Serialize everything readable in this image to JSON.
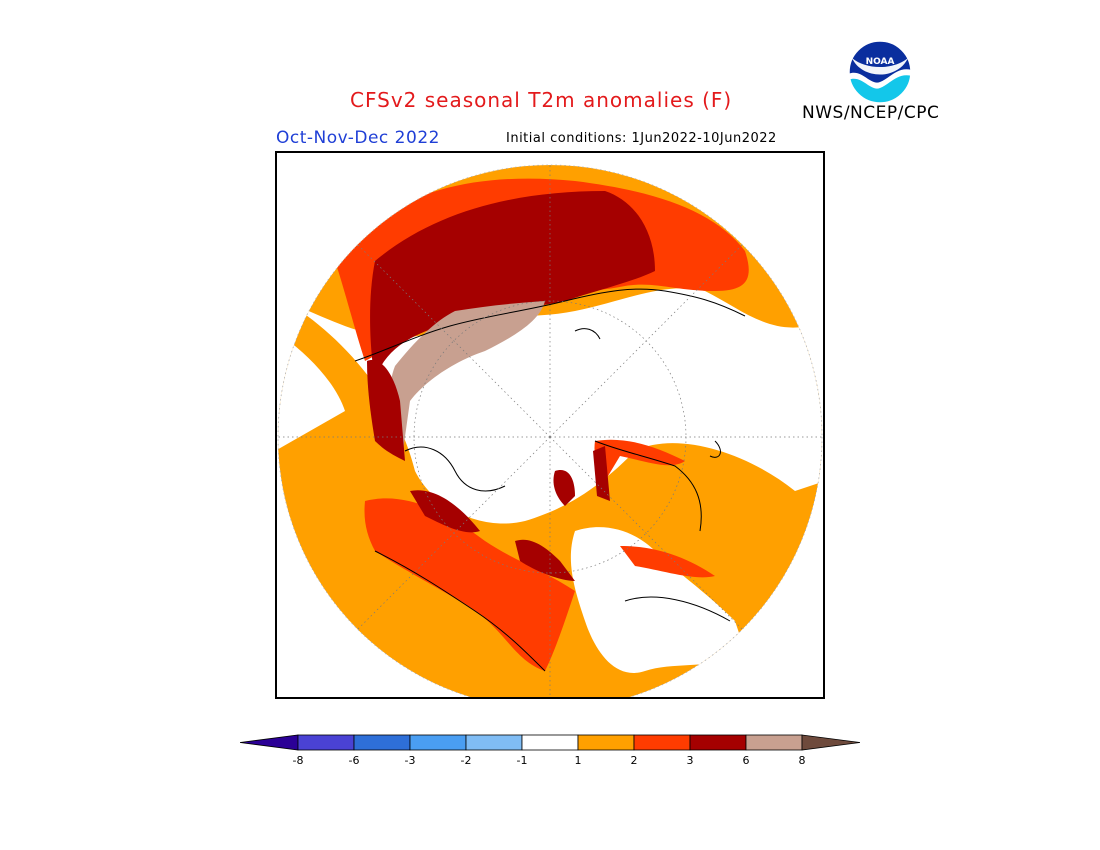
{
  "header": {
    "title": "CFSv2 seasonal T2m anomalies (F)",
    "season": "Oct-Nov-Dec 2022",
    "initial_conditions": "Initial conditions: 1Jun2022-10Jun2022",
    "agency": "NWS/NCEP/CPC",
    "logo_text": "NOAA"
  },
  "legend": {
    "tick_labels": [
      "-8",
      "-6",
      "-3",
      "-2",
      "-1",
      "1",
      "2",
      "3",
      "6",
      "8"
    ],
    "colors": [
      "#2b0096",
      "#4a42d4",
      "#2e6fd8",
      "#4a9ef2",
      "#80bdf5",
      "#ffffff",
      "#ffa000",
      "#ff3c00",
      "#a50000",
      "#c8a090",
      "#6e4a3c"
    ]
  },
  "map": {
    "projection": "north-polar-stereographic",
    "anomaly_colors": {
      "1_to_2": "#ffa000",
      "2_to_3": "#ff3c00",
      "3_to_6": "#a50000",
      "6_to_8": "#c8a090"
    }
  }
}
